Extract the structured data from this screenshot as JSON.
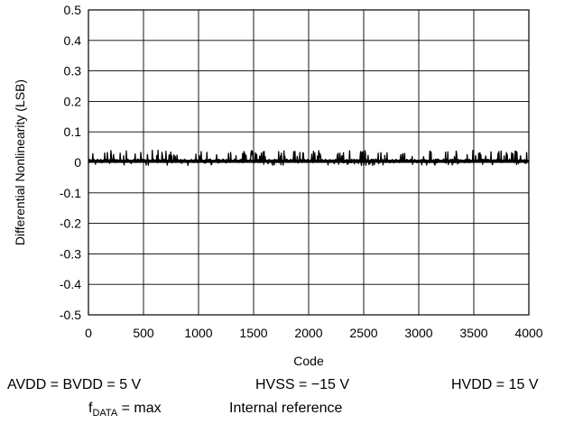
{
  "chart_data": {
    "type": "line",
    "ylabel": "Differential Nonlinearity (LSB)",
    "xlabel": "Code",
    "xlim": [
      0,
      4000
    ],
    "ylim": [
      -0.5,
      0.5
    ],
    "xticks": [
      0,
      500,
      1000,
      1500,
      2000,
      2500,
      3000,
      3500,
      4000
    ],
    "xtick_labels": [
      "0",
      "500",
      "1000",
      "1500",
      "2000",
      "2500",
      "3000",
      "3500",
      "4000"
    ],
    "yticks": [
      0.5,
      0.4,
      0.3,
      0.2,
      0.1,
      0,
      -0.1,
      -0.2,
      -0.3,
      -0.4,
      -0.5
    ],
    "ytick_labels": [
      "0.5",
      "0.4",
      "0.3",
      "0.2",
      "0.1",
      "0",
      "-0.1",
      "-0.2",
      "-0.3",
      "-0.4",
      "-0.5"
    ],
    "grid": true,
    "series": [
      {
        "color": "#000000",
        "x": [
          0,
          4000
        ],
        "y_range": [
          -0.01,
          0.04
        ],
        "y_typical": 0.005
      }
    ]
  },
  "conditions": {
    "supply": "AVDD = BVDD = 5 V",
    "hvss": "HVSS = −15 V",
    "hvdd": "HVDD = 15 V",
    "fdata_main": "f",
    "fdata_sub": "DATA",
    "fdata_value": " = max",
    "reference": "Internal reference"
  }
}
